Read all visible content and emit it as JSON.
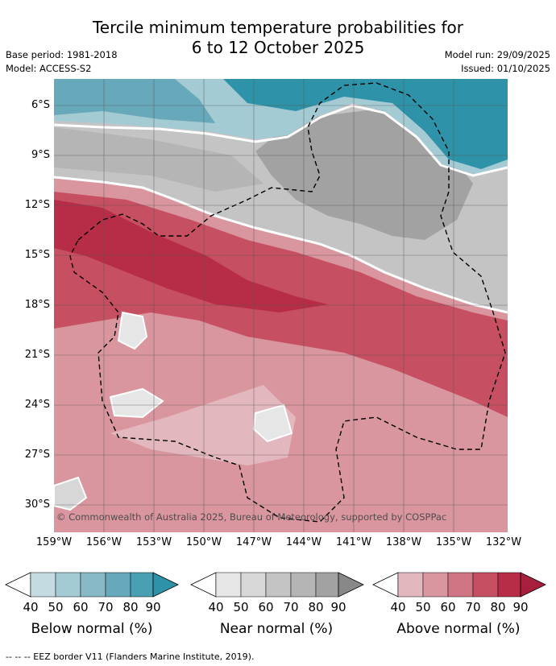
{
  "title_line1": "Tercile minimum temperature probabilities for",
  "title_line2": "6 to 12 October 2025",
  "base_period": "Base period: 1981-2018",
  "model": "Model: ACCESS-S2",
  "model_run": "Model run: 29/09/2025",
  "issued": "Issued: 01/10/2025",
  "copyright": "© Commonwealth of Australia 2025, Bureau of Meteorology, supported by COSPPac",
  "lat_labels": [
    "6°S",
    "9°S",
    "12°S",
    "15°S",
    "18°S",
    "21°S",
    "24°S",
    "27°S",
    "30°S"
  ],
  "lon_labels": [
    "159°W",
    "156°W",
    "153°W",
    "150°W",
    "147°W",
    "144°W",
    "141°W",
    "138°W",
    "135°W",
    "132°W"
  ],
  "legend": {
    "ticks": [
      "40",
      "50",
      "60",
      "70",
      "80",
      "90"
    ],
    "below_title": "Below normal (%)",
    "near_title": "Near normal (%)",
    "above_title": "Above normal (%)"
  },
  "colors": {
    "below": [
      "#c3dbe1",
      "#a4cad4",
      "#87b9c6",
      "#67a9ba",
      "#2e93a8"
    ],
    "near": [
      "#e6e6e6",
      "#d7d7d7",
      "#c4c4c4",
      "#b5b5b5",
      "#a2a2a2"
    ],
    "above": [
      "#e2b8be",
      "#d9969f",
      "#cf7583",
      "#c64f62",
      "#b72d48"
    ]
  },
  "footer": "--  --  -- EEZ border V11 (Flanders Marine Institute, 2019)."
}
